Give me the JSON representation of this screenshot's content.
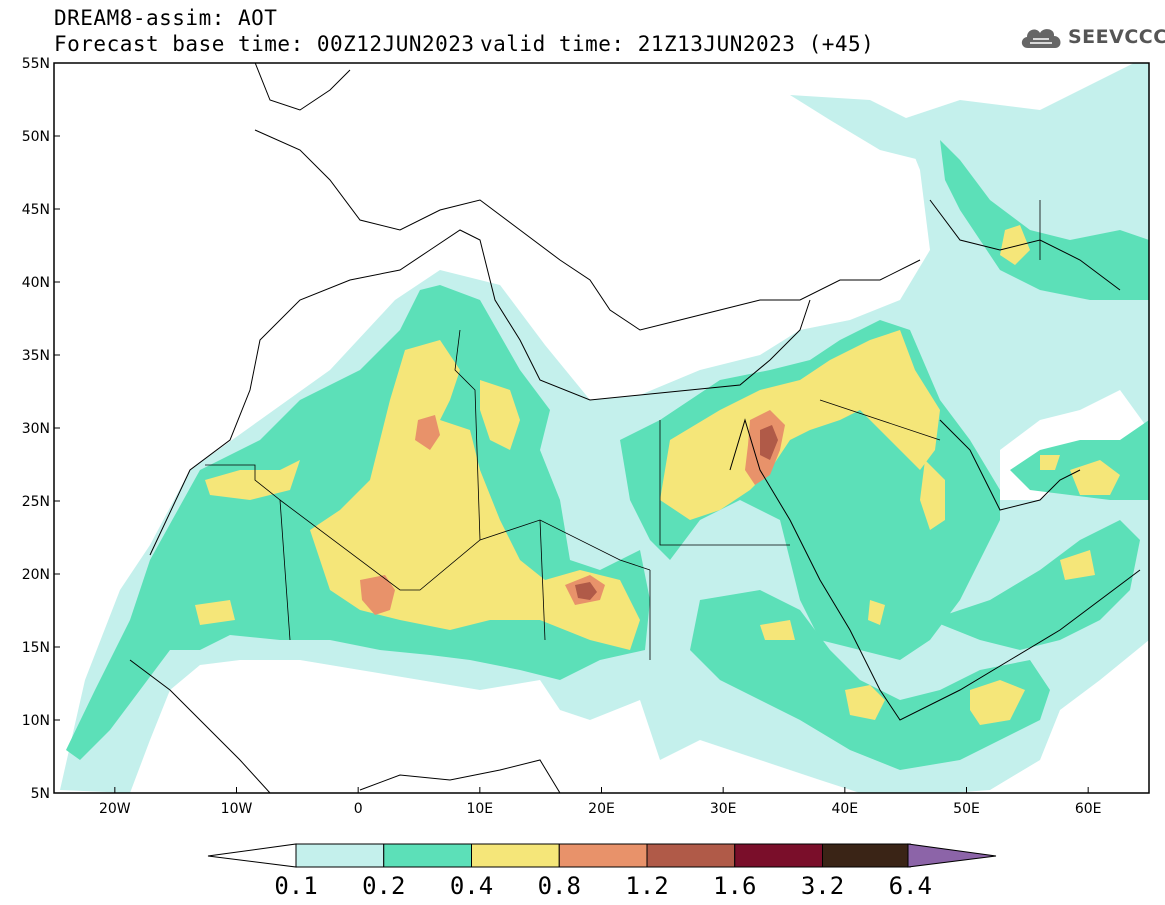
{
  "header": {
    "title": "DREAM8-assim: AOT",
    "base_time": "Forecast base time: 00Z12JUN2023",
    "valid_time": "valid time: 21Z13JUN2023 (+45)"
  },
  "logo": {
    "text": "SEEVCCC",
    "icon": "cloud-icon"
  },
  "map_view": {
    "lon_range": [
      -25,
      65
    ],
    "lat_range": [
      5,
      55
    ],
    "lat_ticks": [
      "55N",
      "50N",
      "45N",
      "40N",
      "35N",
      "30N",
      "25N",
      "20N",
      "15N",
      "10N",
      "5N"
    ],
    "lon_ticks": [
      "20W",
      "10W",
      "0",
      "10E",
      "20E",
      "30E",
      "40E",
      "50E",
      "60E"
    ],
    "variable": "Aerosol optical thickness (AOT)"
  },
  "colorbar": {
    "labels": [
      "0.1",
      "0.2",
      "0.4",
      "0.8",
      "1.2",
      "1.6",
      "3.2",
      "6.4"
    ],
    "colors": [
      "#c4f0ec",
      "#5ce0b8",
      "#f5e679",
      "#e8926a",
      "#b05a48",
      "#7a0e2a",
      "#3a2416",
      "#8c64a8"
    ],
    "low_color": "#ffffff"
  },
  "colors": {
    "level_01": "#c4f0ec",
    "level_02": "#5ce0b8",
    "level_04": "#f5e679",
    "level_08": "#e8926a",
    "level_12": "#b05a48"
  }
}
